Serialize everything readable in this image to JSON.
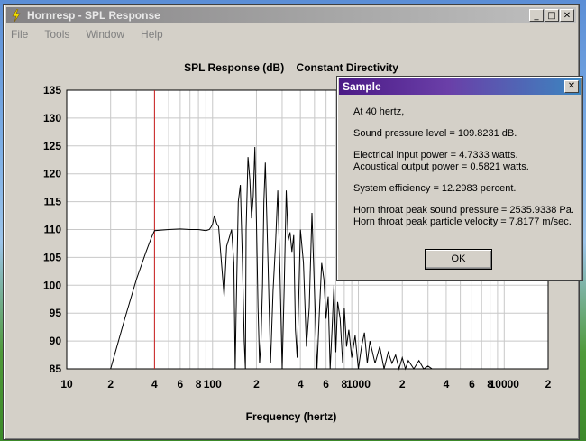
{
  "window": {
    "title": "Hornresp - SPL Response",
    "minimize": "_",
    "maximize": "□",
    "close": "✕"
  },
  "menu": [
    "File",
    "Tools",
    "Window",
    "Help"
  ],
  "chart_data": {
    "type": "line",
    "title": "SPL Response (dB)    Constant Directivity",
    "xlabel": "Frequency (hertz)",
    "ylabel": "",
    "xscale": "log",
    "xlim": [
      10,
      20000
    ],
    "ylim": [
      85,
      135
    ],
    "yticks": [
      85,
      90,
      95,
      100,
      105,
      110,
      115,
      120,
      125,
      130,
      135
    ],
    "xtick_labels": [
      {
        "value": 10,
        "label": "10"
      },
      {
        "value": 20,
        "label": "2"
      },
      {
        "value": 40,
        "label": "4"
      },
      {
        "value": 60,
        "label": "6"
      },
      {
        "value": 80,
        "label": "8"
      },
      {
        "value": 100,
        "label": "100"
      },
      {
        "value": 200,
        "label": "2"
      },
      {
        "value": 400,
        "label": "4"
      },
      {
        "value": 600,
        "label": "6"
      },
      {
        "value": 800,
        "label": "8"
      },
      {
        "value": 1000,
        "label": "1000"
      },
      {
        "value": 2000,
        "label": "2"
      },
      {
        "value": 4000,
        "label": "4"
      },
      {
        "value": 6000,
        "label": "6"
      },
      {
        "value": 8000,
        "label": "8"
      },
      {
        "value": 10000,
        "label": "10000"
      },
      {
        "value": 20000,
        "label": "2"
      }
    ],
    "marker_frequency": 40,
    "grid": true,
    "colors": {
      "series": "#000000",
      "marker": "#cc2222",
      "grid": "#c8c8c8",
      "plot_bg": "#ffffff"
    },
    "series": [
      {
        "x": [
          20,
          25,
          30,
          35,
          38,
          40,
          50,
          60,
          70,
          80,
          90,
          95,
          98,
          100,
          103,
          107,
          110,
          120,
          125,
          130,
          135,
          140,
          143,
          145,
          150,
          155,
          160,
          165,
          168,
          170,
          175,
          180,
          185,
          190,
          195,
          200,
          205,
          210,
          215,
          220,
          225,
          230,
          240,
          250,
          260,
          270,
          280,
          290,
          300,
          310,
          320,
          330,
          340,
          350,
          360,
          370,
          380,
          390,
          400,
          420,
          440,
          460,
          480,
          500,
          520,
          540,
          560,
          580,
          600,
          620,
          640,
          660,
          680,
          700,
          720,
          750,
          780,
          800,
          830,
          860,
          900,
          950,
          1000,
          1050,
          1100,
          1150,
          1200,
          1300,
          1400,
          1500,
          1600,
          1700,
          1800,
          1900,
          2000,
          2100,
          2200,
          2400,
          2600,
          2800,
          3000,
          3200,
          3400
        ],
        "values": [
          85,
          94,
          101,
          106,
          108.5,
          109.8,
          110,
          110.1,
          110,
          110,
          109.8,
          110,
          110.5,
          111,
          112.5,
          111,
          110.5,
          98,
          107,
          108.5,
          110,
          104,
          85,
          95,
          115,
          118,
          105,
          90,
          85,
          110,
          123,
          119,
          112,
          116,
          124.8,
          111,
          96,
          86,
          90,
          100,
          115,
          122,
          104,
          86,
          99,
          107,
          117,
          102,
          85,
          100,
          117,
          108,
          109.5,
          106,
          109,
          92,
          87,
          98,
          110,
          104,
          89,
          96,
          113,
          99,
          85,
          95,
          104,
          101,
          94,
          98,
          85,
          92,
          100,
          88,
          97,
          94,
          86,
          96,
          89,
          92,
          87,
          91,
          85,
          89,
          91.5,
          86,
          90,
          86,
          89,
          85,
          88,
          86,
          87.5,
          85,
          87,
          85,
          86.5,
          85,
          86.5,
          85,
          85.5,
          85,
          85
        ]
      }
    ]
  },
  "dialog": {
    "title": "Sample",
    "close": "✕",
    "lines": [
      "At 40 hertz,",
      "",
      "Sound pressure level = 109.8231 dB.",
      "",
      "Electrical input power = 4.7333 watts.",
      "Acoustical output power = 0.5821 watts.",
      "",
      "System efficiency = 12.2983 percent.",
      "",
      "Horn throat peak sound pressure = 2535.9338 Pa.",
      "Horn throat peak particle velocity = 7.8177 m/sec."
    ],
    "ok_label": "OK"
  }
}
